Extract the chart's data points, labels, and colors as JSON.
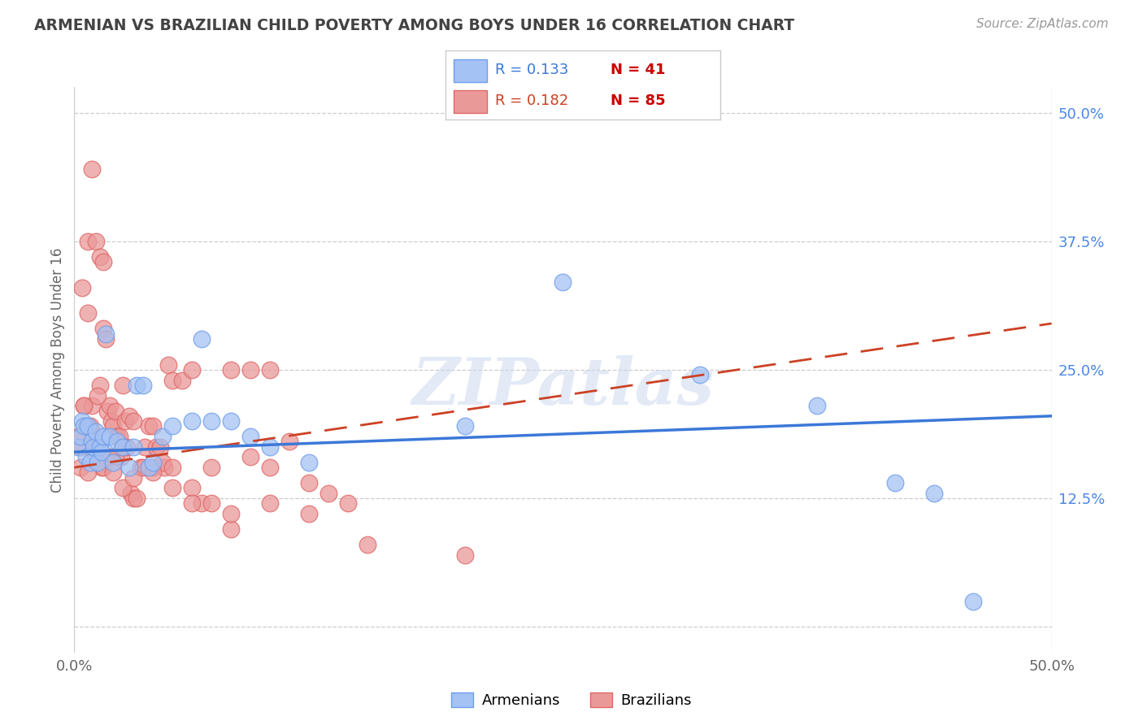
{
  "title": "ARMENIAN VS BRAZILIAN CHILD POVERTY AMONG BOYS UNDER 16 CORRELATION CHART",
  "source": "Source: ZipAtlas.com",
  "ylabel": "Child Poverty Among Boys Under 16",
  "xmin": 0.0,
  "xmax": 0.5,
  "ymin": -0.025,
  "ymax": 0.525,
  "color_armenians_fill": "#a4c2f4",
  "color_armenians_edge": "#6d9eeb",
  "color_brazilians_fill": "#ea9999",
  "color_brazilians_edge": "#e06666",
  "color_blue_line": "#3c78d8",
  "color_pink_line": "#cc4125",
  "color_title": "#434343",
  "color_source": "#999999",
  "color_right_labels": "#4a86e8",
  "background_color": "#ffffff",
  "watermark": "ZIPatlas",
  "armenians_R": 0.133,
  "armenians_N": 41,
  "brazilians_R": 0.182,
  "brazilians_N": 85,
  "armenians_x": [
    0.002,
    0.003,
    0.004,
    0.005,
    0.006,
    0.007,
    0.008,
    0.009,
    0.01,
    0.011,
    0.012,
    0.013,
    0.014,
    0.015,
    0.016,
    0.018,
    0.02,
    0.022,
    0.025,
    0.028,
    0.03,
    0.032,
    0.035,
    0.038,
    0.04,
    0.045,
    0.05,
    0.06,
    0.065,
    0.07,
    0.08,
    0.09,
    0.1,
    0.12,
    0.2,
    0.25,
    0.32,
    0.38,
    0.42,
    0.44,
    0.46
  ],
  "armenians_y": [
    0.175,
    0.185,
    0.2,
    0.195,
    0.165,
    0.195,
    0.16,
    0.18,
    0.175,
    0.19,
    0.16,
    0.175,
    0.17,
    0.185,
    0.285,
    0.185,
    0.16,
    0.18,
    0.175,
    0.155,
    0.175,
    0.235,
    0.235,
    0.155,
    0.16,
    0.185,
    0.195,
    0.2,
    0.28,
    0.2,
    0.2,
    0.185,
    0.175,
    0.16,
    0.195,
    0.335,
    0.245,
    0.215,
    0.14,
    0.13,
    0.025
  ],
  "brazilians_x": [
    0.002,
    0.003,
    0.004,
    0.005,
    0.006,
    0.007,
    0.008,
    0.009,
    0.01,
    0.011,
    0.012,
    0.013,
    0.014,
    0.015,
    0.016,
    0.017,
    0.018,
    0.019,
    0.02,
    0.021,
    0.022,
    0.023,
    0.024,
    0.025,
    0.026,
    0.027,
    0.028,
    0.029,
    0.03,
    0.032,
    0.034,
    0.036,
    0.038,
    0.04,
    0.042,
    0.044,
    0.046,
    0.048,
    0.05,
    0.055,
    0.06,
    0.065,
    0.07,
    0.08,
    0.09,
    0.1,
    0.11,
    0.12,
    0.13,
    0.14,
    0.003,
    0.005,
    0.007,
    0.009,
    0.011,
    0.013,
    0.015,
    0.018,
    0.021,
    0.025,
    0.03,
    0.035,
    0.04,
    0.045,
    0.05,
    0.06,
    0.07,
    0.08,
    0.09,
    0.1,
    0.007,
    0.009,
    0.012,
    0.015,
    0.02,
    0.025,
    0.03,
    0.04,
    0.05,
    0.06,
    0.08,
    0.1,
    0.12,
    0.15,
    0.2
  ],
  "brazilians_y": [
    0.185,
    0.155,
    0.33,
    0.215,
    0.195,
    0.305,
    0.195,
    0.215,
    0.17,
    0.175,
    0.175,
    0.235,
    0.155,
    0.29,
    0.28,
    0.21,
    0.215,
    0.2,
    0.195,
    0.21,
    0.185,
    0.185,
    0.165,
    0.235,
    0.2,
    0.175,
    0.205,
    0.13,
    0.125,
    0.125,
    0.155,
    0.175,
    0.195,
    0.155,
    0.175,
    0.175,
    0.155,
    0.255,
    0.24,
    0.24,
    0.25,
    0.12,
    0.12,
    0.25,
    0.25,
    0.25,
    0.18,
    0.14,
    0.13,
    0.12,
    0.175,
    0.215,
    0.375,
    0.445,
    0.375,
    0.36,
    0.355,
    0.165,
    0.165,
    0.175,
    0.2,
    0.155,
    0.195,
    0.16,
    0.155,
    0.135,
    0.155,
    0.095,
    0.165,
    0.155,
    0.15,
    0.19,
    0.225,
    0.155,
    0.15,
    0.135,
    0.145,
    0.15,
    0.135,
    0.12,
    0.11,
    0.12,
    0.11,
    0.08,
    0.07
  ]
}
